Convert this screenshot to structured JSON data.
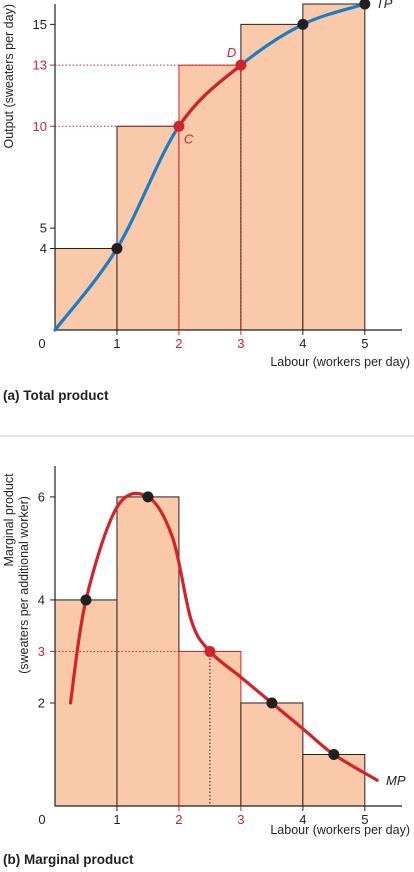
{
  "colors": {
    "bar_fill": "#f9c9a9",
    "bar_stroke": "#231f20",
    "highlight": "#d2232a",
    "tp_curve": "#1a7dc4",
    "point": "#231f20",
    "divider": "#d9d9d9"
  },
  "chart_data": [
    {
      "type": "line",
      "panel_title": "(a) Total product",
      "title": "",
      "xlabel": "Labour (workers per day)",
      "ylabel": "Output (sweaters per day)",
      "xlim": [
        0,
        5.6
      ],
      "ylim": [
        0,
        16
      ],
      "origin_label": "0",
      "x_ticks": [
        {
          "value": 1,
          "label": "1",
          "highlight": false
        },
        {
          "value": 2,
          "label": "2",
          "highlight": true
        },
        {
          "value": 3,
          "label": "3",
          "highlight": true
        },
        {
          "value": 4,
          "label": "4",
          "highlight": false
        },
        {
          "value": 5,
          "label": "5",
          "highlight": false
        }
      ],
      "y_ticks": [
        {
          "value": 4,
          "label": "4",
          "highlight": false
        },
        {
          "value": 5,
          "label": "5",
          "highlight": false
        },
        {
          "value": 10,
          "label": "10",
          "highlight": true
        },
        {
          "value": 13,
          "label": "13",
          "highlight": true
        },
        {
          "value": 15,
          "label": "15",
          "highlight": false
        }
      ],
      "steps": [
        {
          "x0": 0,
          "x1": 1,
          "y": 4,
          "highlight": false
        },
        {
          "x0": 1,
          "x1": 2,
          "y": 10,
          "highlight": false
        },
        {
          "x0": 2,
          "x1": 3,
          "y": 13,
          "highlight": true
        },
        {
          "x0": 3,
          "x1": 4,
          "y": 15,
          "highlight": false
        },
        {
          "x0": 4,
          "x1": 5,
          "y": 16,
          "highlight": false
        }
      ],
      "series": [
        {
          "name": "TP",
          "x": [
            0,
            1,
            2,
            3,
            4,
            5
          ],
          "y": [
            0,
            4,
            10,
            13,
            15,
            16
          ]
        }
      ],
      "highlight_segment": {
        "x0": 2,
        "x1": 3
      },
      "points": [
        {
          "x": 1,
          "y": 4,
          "label": "",
          "highlight": false
        },
        {
          "x": 2,
          "y": 10,
          "label": "C",
          "highlight": true
        },
        {
          "x": 3,
          "y": 13,
          "label": "D",
          "highlight": true
        },
        {
          "x": 4,
          "y": 15,
          "label": "",
          "highlight": false
        },
        {
          "x": 5,
          "y": 16,
          "label": "",
          "highlight": false
        }
      ]
    },
    {
      "type": "bar",
      "panel_title": "(b) Marginal product",
      "title": "",
      "xlabel": "Labour (workers per day)",
      "ylabel_line1": "Marginal product",
      "ylabel_line2": "(sweaters per additional worker)",
      "xlim": [
        0,
        5.6
      ],
      "ylim": [
        0,
        6.6
      ],
      "origin_label": "0",
      "x_ticks": [
        {
          "value": 1,
          "label": "1",
          "highlight": false
        },
        {
          "value": 2,
          "label": "2",
          "highlight": true
        },
        {
          "value": 3,
          "label": "3",
          "highlight": true
        },
        {
          "value": 4,
          "label": "4",
          "highlight": false
        },
        {
          "value": 5,
          "label": "5",
          "highlight": false
        }
      ],
      "y_ticks": [
        {
          "value": 2,
          "label": "2",
          "highlight": false
        },
        {
          "value": 3,
          "label": "3",
          "highlight": true
        },
        {
          "value": 4,
          "label": "4",
          "highlight": false
        },
        {
          "value": 6,
          "label": "6",
          "highlight": false
        }
      ],
      "bars": [
        {
          "x0": 0,
          "x1": 1,
          "value": 4,
          "highlight": false
        },
        {
          "x0": 1,
          "x1": 2,
          "value": 6,
          "highlight": false
        },
        {
          "x0": 2,
          "x1": 3,
          "value": 3,
          "highlight": true
        },
        {
          "x0": 3,
          "x1": 4,
          "value": 2,
          "highlight": false
        },
        {
          "x0": 4,
          "x1": 5,
          "value": 1,
          "highlight": false
        }
      ],
      "series": [
        {
          "name": "MP",
          "x": [
            0.25,
            0.5,
            1.0,
            1.5,
            1.9,
            2.2,
            2.5,
            3.0,
            3.5,
            4.0,
            4.5,
            5.2
          ],
          "y": [
            2.0,
            4.0,
            5.8,
            6.0,
            5.2,
            3.6,
            3.0,
            2.5,
            2.0,
            1.5,
            1.0,
            0.5
          ]
        }
      ],
      "points": [
        {
          "x": 0.5,
          "y": 4,
          "highlight": false
        },
        {
          "x": 1.5,
          "y": 6,
          "highlight": false
        },
        {
          "x": 2.5,
          "y": 3,
          "highlight": true
        },
        {
          "x": 3.5,
          "y": 2,
          "highlight": false
        },
        {
          "x": 4.5,
          "y": 1,
          "highlight": false
        }
      ]
    }
  ]
}
